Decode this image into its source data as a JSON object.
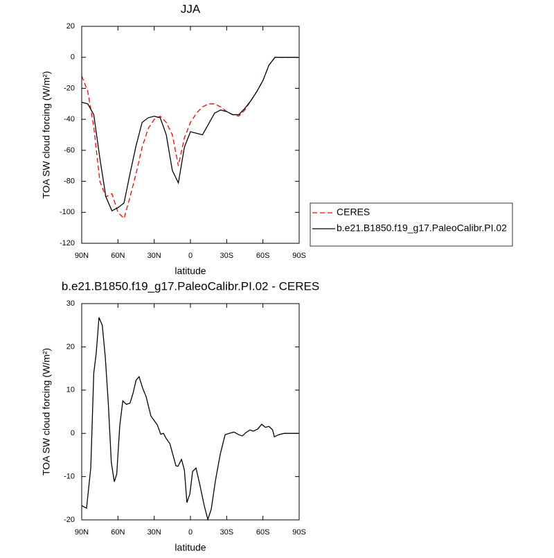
{
  "chart_data": [
    {
      "type": "line",
      "title": "JJA",
      "xlabel": "latitude",
      "ylabel": "TOA SW cloud forcing (W/m²)",
      "x": [
        90,
        85,
        80,
        75,
        70,
        65,
        60,
        55,
        50,
        45,
        40,
        35,
        30,
        25,
        20,
        15,
        10,
        5,
        0,
        -5,
        -10,
        -15,
        -20,
        -25,
        -30,
        -35,
        -40,
        -45,
        -50,
        -55,
        -60,
        -65,
        -70,
        -75,
        -80,
        -85,
        -90
      ],
      "series": [
        {
          "name": "CERES",
          "color": "#ff0000",
          "line_style": "dashed",
          "values": [
            -12,
            -22,
            -45,
            -80,
            -90,
            -88,
            -100,
            -104,
            -90,
            -75,
            -58,
            -46,
            -40,
            -38,
            -42,
            -50,
            -70,
            -52,
            -42,
            -36,
            -32,
            -30,
            -30,
            -32,
            -35,
            -37,
            -38,
            -34,
            -28,
            -22,
            -15,
            -5,
            0,
            0,
            0,
            0,
            0
          ]
        },
        {
          "name": "b.e21.B1850.f19_g17.PaleoCalibr.PI.02",
          "color": "#000000",
          "line_style": "solid",
          "values": [
            -29,
            -30,
            -37,
            -65,
            -90,
            -99,
            -97,
            -94,
            -75,
            -57,
            -42,
            -39,
            -38,
            -39,
            -50,
            -73,
            -81,
            -58,
            -48,
            -49,
            -50,
            -43,
            -36,
            -34,
            -35,
            -37,
            -37,
            -33,
            -28,
            -22,
            -15,
            -5,
            0,
            0,
            0,
            0,
            0
          ]
        }
      ],
      "xlim": [
        90,
        -90
      ],
      "xticks": [
        {
          "value": 90,
          "label": "90N"
        },
        {
          "value": 60,
          "label": "60N"
        },
        {
          "value": 30,
          "label": "30N"
        },
        0,
        {
          "value": -30,
          "label": "30S"
        },
        {
          "value": -60,
          "label": "60S"
        },
        {
          "value": -90,
          "label": "90S"
        }
      ],
      "ylim": [
        -120,
        20
      ],
      "yticks": [
        -120,
        -100,
        -80,
        -60,
        -40,
        -20,
        0,
        20
      ],
      "legend": "right"
    },
    {
      "type": "line",
      "title": "b.e21.B1850.f19_g17.PaleoCalibr.PI.02 - CERES",
      "xlabel": "latitude",
      "ylabel": "TOA SW cloud forcing (W/m²)",
      "x": [
        90,
        86,
        82.5,
        80,
        78,
        75.7,
        73,
        70.5,
        68,
        65.5,
        63,
        61,
        58.5,
        56,
        53,
        50,
        47.5,
        45,
        42.5,
        39.5,
        36.7,
        32.7,
        27.5,
        24.6,
        22.3,
        20,
        17,
        12,
        10.3,
        7.4,
        5,
        2.9,
        0.5,
        -1.8,
        -4.6,
        -7.5,
        -11.5,
        -14.4,
        -17.2,
        -20.7,
        -24.7,
        -28.7,
        -32,
        -36,
        -40,
        -43,
        -46,
        -49.3,
        -52,
        -55.7,
        -59,
        -62,
        -65,
        -68,
        -69.5,
        -73,
        -77.5,
        -90
      ],
      "values": [
        -16.7,
        -17.3,
        -8,
        14,
        18.5,
        26.8,
        25,
        17.7,
        7,
        -6.7,
        -11.2,
        -9.4,
        1.8,
        7.5,
        6.7,
        7,
        9.3,
        12.3,
        13.1,
        10.4,
        8.5,
        4,
        2,
        -0.2,
        0,
        -1.2,
        -2.4,
        -7.5,
        -7.6,
        -6,
        -8.5,
        -16,
        -14,
        -8.8,
        -8,
        -11.5,
        -16.8,
        -19.9,
        -17.6,
        -10.9,
        -4.8,
        -0.3,
        0,
        0.3,
        -0.3,
        -0.6,
        0.2,
        0.8,
        0.5,
        1,
        2.1,
        1.4,
        1.6,
        0.8,
        -0.8,
        -0.3,
        0,
        0
      ],
      "color": "#000000",
      "xlim": [
        90,
        -90
      ],
      "xticks": [
        {
          "value": 90,
          "label": "90N"
        },
        {
          "value": 60,
          "label": "60N"
        },
        {
          "value": 30,
          "label": "30N"
        },
        0,
        {
          "value": -30,
          "label": "30S"
        },
        {
          "value": -60,
          "label": "60S"
        },
        {
          "value": -90,
          "label": "90S"
        }
      ],
      "ylim": [
        -20,
        30
      ],
      "yticks": [
        -20,
        -10,
        0,
        10,
        20,
        30
      ]
    }
  ]
}
